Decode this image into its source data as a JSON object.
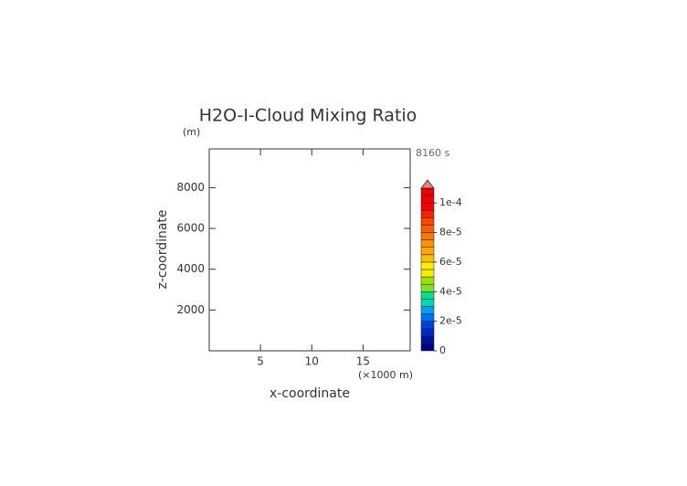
{
  "chart_data": {
    "type": "contour",
    "title": "H2O-I-Cloud Mixing Ratio",
    "y_unit": "(m)",
    "time_label": "8160 s",
    "xlabel": "x-coordinate",
    "x_unit": "(×1000 m)",
    "ylabel": "z-coordinate",
    "xlim": [
      0,
      19.6
    ],
    "xticks": [
      5,
      10,
      15
    ],
    "ylim": [
      0,
      9900
    ],
    "yticks": [
      2000,
      4000,
      6000,
      8000
    ],
    "colorbar": {
      "levels": [
        0,
        5e-06,
        1e-05,
        1.5e-05,
        2e-05,
        2.5e-05,
        3e-05,
        3.5e-05,
        4e-05,
        4.5e-05,
        5e-05,
        5.5e-05,
        6e-05,
        6.5e-05,
        7e-05,
        7.5e-05,
        8e-05,
        8.5e-05,
        9e-05,
        9.5e-05,
        0.0001,
        0.000105,
        0.00011
      ],
      "colors": [
        "#000080",
        "#0010a0",
        "#0028c0",
        "#0040e0",
        "#0070f0",
        "#00a0f8",
        "#00d8b0",
        "#00e090",
        "#80e020",
        "#a0e000",
        "#f0f000",
        "#f8f000",
        "#f8c000",
        "#f8a800",
        "#f89000",
        "#f87800",
        "#f86000",
        "#f84800",
        "#f82000",
        "#f80000",
        "#f00000",
        "#e80000"
      ],
      "extend_color": "#f08080",
      "ticks": [
        0,
        {
          "value": 2e-05,
          "label": "2e-5"
        },
        {
          "value": 4e-05,
          "label": "4e-5"
        },
        {
          "value": 6e-05,
          "label": "6e-5"
        },
        {
          "value": 8e-05,
          "label": "8e-5"
        },
        {
          "value": 0.0001,
          "label": "1e-4"
        }
      ]
    }
  }
}
